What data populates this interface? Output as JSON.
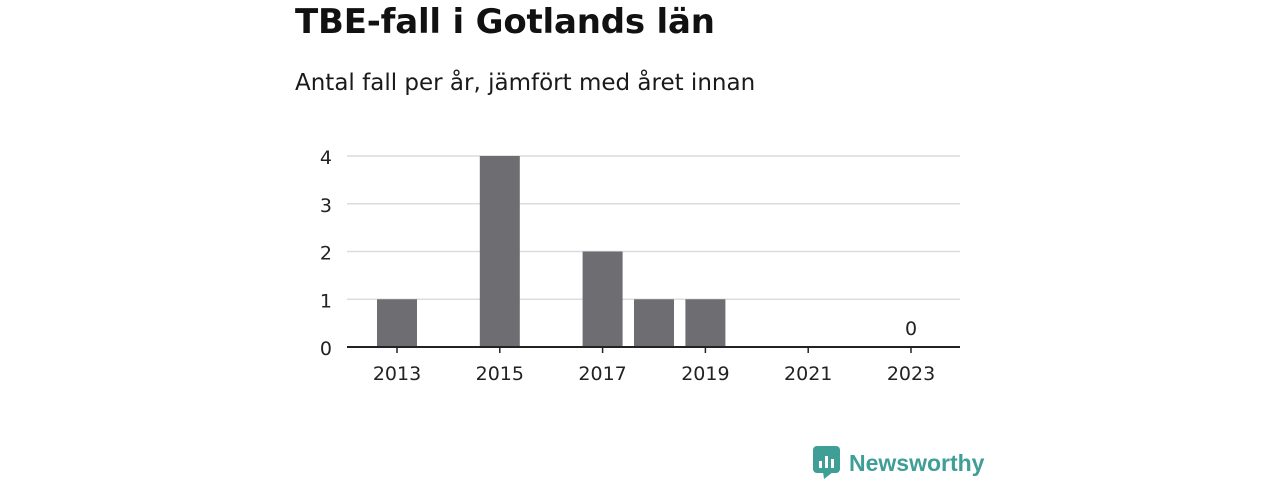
{
  "title": "TBE-fall i Gotlands län",
  "subtitle": "Antal fall per år, jämfört med året innan",
  "brand": {
    "name": "Newsworthy",
    "color": "#3f9e96"
  },
  "chart_data": {
    "type": "bar",
    "categories": [
      "2013",
      "2014",
      "2015",
      "2016",
      "2017",
      "2018",
      "2019",
      "2020",
      "2021",
      "2022",
      "2023"
    ],
    "values": [
      1,
      0,
      4,
      0,
      2,
      1,
      1,
      0,
      0,
      0,
      0
    ],
    "x_tick_labels": [
      "2013",
      "2015",
      "2017",
      "2019",
      "2021",
      "2023"
    ],
    "y_ticks": [
      0,
      1,
      2,
      3,
      4
    ],
    "ylim": [
      0,
      4
    ],
    "grid": true,
    "bar_color": "#6e6d72",
    "annotations": [
      {
        "category": "2023",
        "text": "0"
      }
    ]
  }
}
